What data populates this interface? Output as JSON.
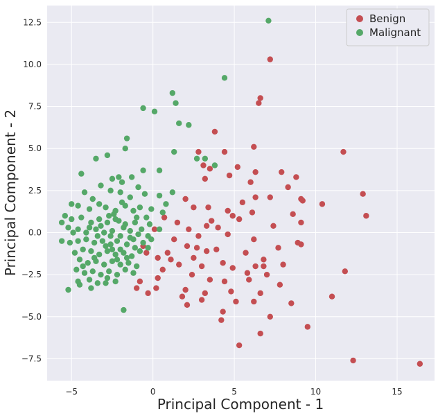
{
  "chart_data": {
    "type": "scatter",
    "title": "",
    "xlabel": "Principal Component - 1",
    "ylabel": "Principal Component - 2",
    "xlim": [
      -6.5,
      17.3
    ],
    "ylim": [
      -8.8,
      13.5
    ],
    "xticks": [
      -5,
      0,
      5,
      10,
      15
    ],
    "yticks": [
      -7.5,
      -5.0,
      -2.5,
      0.0,
      2.5,
      5.0,
      7.5,
      10.0,
      12.5
    ],
    "xtick_labels": [
      "−5",
      "0",
      "5",
      "10",
      "15"
    ],
    "ytick_labels": [
      "−7.5",
      "−5.0",
      "−2.5",
      "0.0",
      "2.5",
      "5.0",
      "7.5",
      "10.0",
      "12.5"
    ],
    "grid": true,
    "background": "#eaeaf2",
    "legend": {
      "position": "top-right"
    },
    "series": [
      {
        "name": "Benign",
        "color": "#c44e52",
        "points": [
          [
            7.2,
            10.3
          ],
          [
            6.6,
            8.0
          ],
          [
            6.5,
            7.7
          ],
          [
            3.8,
            6.0
          ],
          [
            6.2,
            5.1
          ],
          [
            11.7,
            4.8
          ],
          [
            2.8,
            4.8
          ],
          [
            4.4,
            4.8
          ],
          [
            3.1,
            4.0
          ],
          [
            3.5,
            3.8
          ],
          [
            5.2,
            3.9
          ],
          [
            6.3,
            3.6
          ],
          [
            7.9,
            3.6
          ],
          [
            3.2,
            3.2
          ],
          [
            4.7,
            3.4
          ],
          [
            6.0,
            3.0
          ],
          [
            8.8,
            3.3
          ],
          [
            8.3,
            2.7
          ],
          [
            12.9,
            2.3
          ],
          [
            9.1,
            2.0
          ],
          [
            9.2,
            1.9
          ],
          [
            10.4,
            1.7
          ],
          [
            6.3,
            2.1
          ],
          [
            7.2,
            2.1
          ],
          [
            5.5,
            1.8
          ],
          [
            2.5,
            1.5
          ],
          [
            3.4,
            1.5
          ],
          [
            4.6,
            1.3
          ],
          [
            6.1,
            1.2
          ],
          [
            8.6,
            1.1
          ],
          [
            13.1,
            1.0
          ],
          [
            5.3,
            0.8
          ],
          [
            7.4,
            0.4
          ],
          [
            9.1,
            0.6
          ],
          [
            4.0,
            0.3
          ],
          [
            1.5,
            0.6
          ],
          [
            3.3,
            0.4
          ],
          [
            0.7,
            0.9
          ],
          [
            2.2,
            0.2
          ],
          [
            2.8,
            -0.2
          ],
          [
            4.6,
            -0.1
          ],
          [
            6.2,
            -0.4
          ],
          [
            8.9,
            -0.6
          ],
          [
            9.1,
            -0.7
          ],
          [
            7.7,
            -0.9
          ],
          [
            2.1,
            -0.8
          ],
          [
            3.3,
            -1.1
          ],
          [
            5.7,
            -1.2
          ],
          [
            6.8,
            -1.6
          ],
          [
            4.3,
            -1.8
          ],
          [
            2.5,
            -1.5
          ],
          [
            1.1,
            -1.6
          ],
          [
            0.3,
            -1.5
          ],
          [
            -0.4,
            -1.2
          ],
          [
            1.6,
            -1.9
          ],
          [
            3.0,
            -2.0
          ],
          [
            4.9,
            -2.1
          ],
          [
            6.3,
            -2.0
          ],
          [
            6.8,
            -2.0
          ],
          [
            0.6,
            -2.2
          ],
          [
            2.4,
            -2.5
          ],
          [
            3.5,
            -2.8
          ],
          [
            4.4,
            -2.9
          ],
          [
            5.8,
            -2.4
          ],
          [
            8.0,
            -1.9
          ],
          [
            11.8,
            -2.3
          ],
          [
            0.3,
            -2.7
          ],
          [
            -0.8,
            -2.9
          ],
          [
            -1.0,
            -3.3
          ],
          [
            0.2,
            -3.3
          ],
          [
            -0.3,
            -3.6
          ],
          [
            2.0,
            -3.4
          ],
          [
            3.2,
            -3.6
          ],
          [
            4.8,
            -3.5
          ],
          [
            7.8,
            -3.1
          ],
          [
            6.6,
            -3.6
          ],
          [
            11.0,
            -3.8
          ],
          [
            1.8,
            -3.8
          ],
          [
            3.0,
            -4.0
          ],
          [
            5.1,
            -4.1
          ],
          [
            6.2,
            -4.1
          ],
          [
            8.5,
            -4.2
          ],
          [
            2.1,
            -4.3
          ],
          [
            4.3,
            -4.7
          ],
          [
            7.2,
            -5.0
          ],
          [
            4.2,
            -5.2
          ],
          [
            9.5,
            -5.6
          ],
          [
            6.6,
            -6.0
          ],
          [
            5.3,
            -6.7
          ],
          [
            12.3,
            -7.6
          ],
          [
            16.4,
            -7.8
          ],
          [
            0.9,
            -1.2
          ],
          [
            2.7,
            -0.9
          ],
          [
            3.6,
            0.7
          ],
          [
            1.3,
            -0.4
          ],
          [
            0.1,
            0.2
          ],
          [
            5.9,
            -2.8
          ],
          [
            2.0,
            2.0
          ],
          [
            -0.6,
            -0.8
          ],
          [
            3.9,
            -1.0
          ],
          [
            7.0,
            -2.5
          ],
          [
            4.9,
            1.0
          ]
        ]
      },
      {
        "name": "Malignant",
        "color": "#55a868",
        "points": [
          [
            7.1,
            12.6
          ],
          [
            4.4,
            9.2
          ],
          [
            1.2,
            8.3
          ],
          [
            1.4,
            7.7
          ],
          [
            -0.6,
            7.4
          ],
          [
            0.1,
            7.2
          ],
          [
            1.6,
            6.5
          ],
          [
            2.2,
            6.4
          ],
          [
            -1.6,
            5.6
          ],
          [
            -1.7,
            5.0
          ],
          [
            -2.8,
            4.6
          ],
          [
            -3.5,
            4.4
          ],
          [
            1.3,
            4.8
          ],
          [
            3.2,
            4.4
          ],
          [
            2.7,
            4.4
          ],
          [
            3.8,
            4.0
          ],
          [
            -4.4,
            3.5
          ],
          [
            -2.5,
            3.2
          ],
          [
            -2.1,
            3.3
          ],
          [
            -1.3,
            3.3
          ],
          [
            -0.6,
            3.7
          ],
          [
            0.4,
            3.7
          ],
          [
            -1.9,
            3.0
          ],
          [
            -3.2,
            2.8
          ],
          [
            -4.2,
            2.4
          ],
          [
            -3.7,
            2.0
          ],
          [
            -2.6,
            2.5
          ],
          [
            -2.0,
            2.4
          ],
          [
            -1.4,
            2.1
          ],
          [
            -0.5,
            2.3
          ],
          [
            0.4,
            2.2
          ],
          [
            1.2,
            2.4
          ],
          [
            -5.0,
            1.7
          ],
          [
            -4.6,
            1.6
          ],
          [
            -3.9,
            1.4
          ],
          [
            -3.3,
            1.7
          ],
          [
            -2.9,
            1.5
          ],
          [
            -2.3,
            1.3
          ],
          [
            -1.7,
            1.6
          ],
          [
            -1.2,
            1.3
          ],
          [
            -0.8,
            1.5
          ],
          [
            -0.1,
            1.4
          ],
          [
            0.8,
            1.7
          ],
          [
            -5.4,
            1.0
          ],
          [
            -5.0,
            0.8
          ],
          [
            -4.4,
            0.9
          ],
          [
            -3.8,
            0.6
          ],
          [
            -3.3,
            0.8
          ],
          [
            -2.8,
            0.6
          ],
          [
            -2.3,
            0.8
          ],
          [
            -1.7,
            0.5
          ],
          [
            -1.1,
            0.6
          ],
          [
            -0.4,
            0.9
          ],
          [
            0.4,
            0.2
          ],
          [
            -5.6,
            0.6
          ],
          [
            -5.2,
            0.3
          ],
          [
            -4.6,
            0.2
          ],
          [
            -4.1,
            0.0
          ],
          [
            -3.5,
            0.2
          ],
          [
            -3.0,
            0.0
          ],
          [
            -2.5,
            0.1
          ],
          [
            -2.0,
            -0.2
          ],
          [
            -1.4,
            0.1
          ],
          [
            -0.9,
            -0.1
          ],
          [
            -0.3,
            -0.2
          ],
          [
            -5.6,
            -0.5
          ],
          [
            -5.1,
            -0.6
          ],
          [
            -4.6,
            -0.5
          ],
          [
            -4.1,
            -0.4
          ],
          [
            -3.6,
            -0.6
          ],
          [
            -3.1,
            -0.5
          ],
          [
            -2.6,
            -0.7
          ],
          [
            -2.2,
            -0.5
          ],
          [
            -1.6,
            -0.7
          ],
          [
            -1.1,
            -0.9
          ],
          [
            -0.6,
            -0.6
          ],
          [
            -0.1,
            -0.4
          ],
          [
            -4.8,
            -1.2
          ],
          [
            -4.3,
            -1.0
          ],
          [
            -3.8,
            -1.1
          ],
          [
            -3.3,
            -1.3
          ],
          [
            -2.8,
            -1.1
          ],
          [
            -2.3,
            -1.3
          ],
          [
            -1.8,
            -1.2
          ],
          [
            -1.3,
            -1.4
          ],
          [
            -0.8,
            -1.1
          ],
          [
            -0.3,
            -0.9
          ],
          [
            -4.5,
            -1.6
          ],
          [
            -4.0,
            -1.8
          ],
          [
            -3.5,
            -1.7
          ],
          [
            -3.0,
            -1.9
          ],
          [
            -2.5,
            -1.7
          ],
          [
            -2.0,
            -1.9
          ],
          [
            -1.5,
            -1.8
          ],
          [
            -1.0,
            -2.0
          ],
          [
            -4.7,
            -2.2
          ],
          [
            -4.2,
            -2.4
          ],
          [
            -3.7,
            -2.3
          ],
          [
            -3.2,
            -2.5
          ],
          [
            -2.7,
            -2.3
          ],
          [
            -2.2,
            -2.5
          ],
          [
            -1.7,
            -2.2
          ],
          [
            -1.2,
            -2.4
          ],
          [
            -4.6,
            -2.9
          ],
          [
            -3.9,
            -2.8
          ],
          [
            -3.4,
            -3.0
          ],
          [
            -2.8,
            -2.7
          ],
          [
            -2.3,
            -2.9
          ],
          [
            -5.2,
            -3.4
          ],
          [
            -4.5,
            -3.1
          ],
          [
            -3.8,
            -3.3
          ],
          [
            -2.9,
            -3.0
          ],
          [
            -1.8,
            -4.6
          ],
          [
            -2.0,
            -1.0
          ],
          [
            -2.6,
            -0.2
          ],
          [
            -3.2,
            0.4
          ],
          [
            -1.8,
            0.3
          ],
          [
            -1.2,
            -0.4
          ],
          [
            -3.9,
            0.3
          ],
          [
            -2.1,
            0.7
          ],
          [
            -2.9,
            -0.8
          ],
          [
            -1.6,
            -1.5
          ],
          [
            -2.4,
            1.1
          ],
          [
            -0.7,
            0.2
          ],
          [
            -3.4,
            -0.2
          ],
          [
            -2.2,
            -1.6
          ],
          [
            -1.9,
            1.8
          ],
          [
            -0.9,
            2.7
          ],
          [
            -2.7,
            1.0
          ],
          [
            -1.4,
            -0.3
          ],
          [
            -3.6,
            -1.5
          ],
          [
            -2.5,
            -1.0
          ],
          [
            -1.0,
            0.9
          ],
          [
            0.6,
            1.2
          ],
          [
            -0.2,
            0.5
          ],
          [
            -4.9,
            0.0
          ],
          [
            -4.3,
            -2.0
          ]
        ]
      }
    ]
  }
}
